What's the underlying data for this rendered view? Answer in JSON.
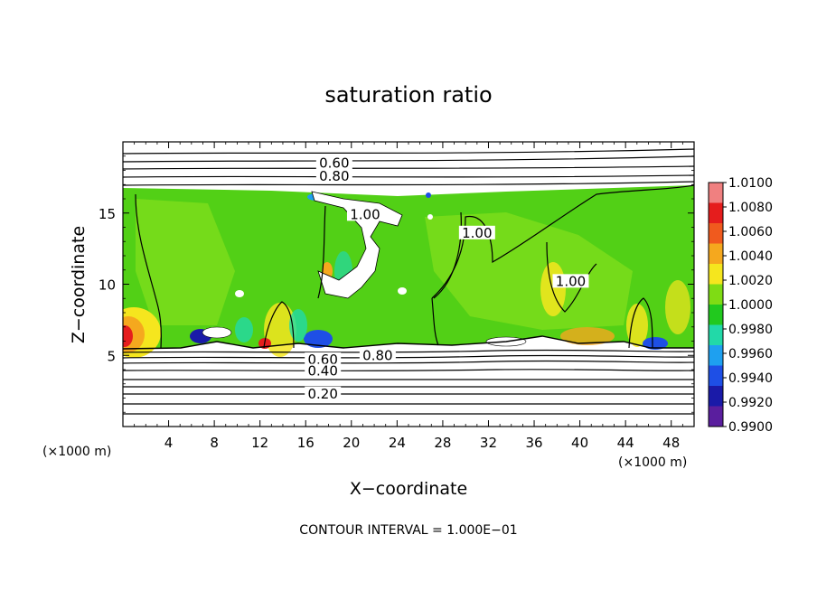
{
  "chart_data": {
    "type": "heatmap",
    "title": "saturation ratio",
    "xlabel": "X−coordinate",
    "ylabel": "Z−coordinate",
    "x_unit_left": "(×1000 m)",
    "x_unit_right": "(×1000 m)",
    "footer": "CONTOUR INTERVAL = 1.000E−01",
    "xlim": [
      0,
      50
    ],
    "ylim": [
      0,
      20
    ],
    "x_ticks": [
      4,
      8,
      12,
      16,
      20,
      24,
      28,
      32,
      36,
      40,
      44,
      48
    ],
    "y_ticks": [
      5,
      10,
      15
    ],
    "colorbar": {
      "min": 0.99,
      "max": 1.01,
      "labels": [
        "1.0100",
        "1.0080",
        "1.0060",
        "1.0040",
        "1.0020",
        "1.0000",
        "0.9980",
        "0.9960",
        "0.9940",
        "0.9920",
        "0.9900"
      ],
      "colors": [
        "#f08080",
        "#e51d1d",
        "#f05a1e",
        "#f5a81e",
        "#f5e61e",
        "#7fdc14",
        "#21c91e",
        "#22d9a8",
        "#1ea0f0",
        "#1e4fe6",
        "#1a1aa8",
        "#5a1e9e"
      ]
    },
    "contour_labels": [
      {
        "text": "0.60",
        "x": 18.5,
        "z": 18.5
      },
      {
        "text": "0.80",
        "x": 18.5,
        "z": 17.6
      },
      {
        "text": "1.00",
        "x": 21.2,
        "z": 14.9
      },
      {
        "text": "1.00",
        "x": 31.0,
        "z": 13.6
      },
      {
        "text": "1.00",
        "x": 39.2,
        "z": 10.2
      },
      {
        "text": "0.60",
        "x": 17.5,
        "z": 4.7
      },
      {
        "text": "0.80",
        "x": 22.3,
        "z": 5.0
      },
      {
        "text": "0.40",
        "x": 17.5,
        "z": 3.9
      },
      {
        "text": "0.20",
        "x": 17.5,
        "z": 2.3
      }
    ]
  }
}
